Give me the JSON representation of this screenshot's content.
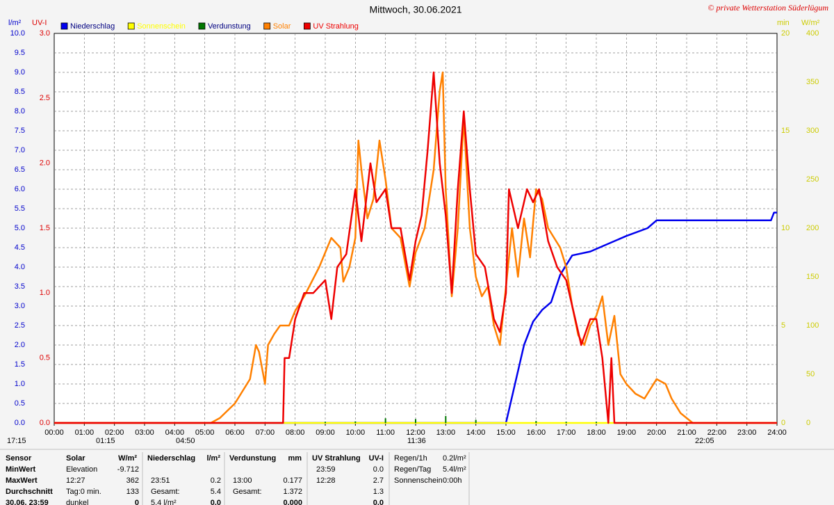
{
  "chart_data": {
    "type": "line",
    "title": "Mittwoch, 30.06.2021",
    "copyright": "© private Wetterstation Süderlügum",
    "axis_units": {
      "y": "l/m²",
      "y2": "UV-I",
      "y3": "min",
      "y4": "W/m²"
    },
    "xlim": [
      0,
      24
    ],
    "xticks": [
      {
        "value": 0,
        "label": "00:00"
      },
      {
        "value": 1,
        "label": "01:00"
      },
      {
        "value": 2,
        "label": "02:00"
      },
      {
        "value": 3,
        "label": "03:00"
      },
      {
        "value": 4,
        "label": "04:00"
      },
      {
        "value": 5,
        "label": "05:00"
      },
      {
        "value": 6,
        "label": "06:00"
      },
      {
        "value": 7,
        "label": "07:00"
      },
      {
        "value": 8,
        "label": "08:00"
      },
      {
        "value": 9,
        "label": "09:00"
      },
      {
        "value": 10,
        "label": "10:00"
      },
      {
        "value": 11,
        "label": "11:00"
      },
      {
        "value": 12,
        "label": "12:00"
      },
      {
        "value": 13,
        "label": "13:00"
      },
      {
        "value": 14,
        "label": "14:00"
      },
      {
        "value": 15,
        "label": "15:00"
      },
      {
        "value": 16,
        "label": "16:00"
      },
      {
        "value": 17,
        "label": "17:00"
      },
      {
        "value": 18,
        "label": "18:00"
      },
      {
        "value": 19,
        "label": "19:00"
      },
      {
        "value": 20,
        "label": "20:00"
      },
      {
        "value": 21,
        "label": "21:00"
      },
      {
        "value": 22,
        "label": "22:00"
      },
      {
        "value": 23,
        "label": "23:00"
      },
      {
        "value": 24,
        "label": "24:00"
      }
    ],
    "ylim": [
      0,
      10
    ],
    "yticks": [
      {
        "value": 0,
        "label": "0.0"
      },
      {
        "value": 0.5,
        "label": "0.5"
      },
      {
        "value": 1,
        "label": "1.0"
      },
      {
        "value": 1.5,
        "label": "1.5"
      },
      {
        "value": 2,
        "label": "2.0"
      },
      {
        "value": 2.5,
        "label": "2.5"
      },
      {
        "value": 3,
        "label": "3.0"
      },
      {
        "value": 3.5,
        "label": "3.5"
      },
      {
        "value": 4,
        "label": "4.0"
      },
      {
        "value": 4.5,
        "label": "4.5"
      },
      {
        "value": 5,
        "label": "5.0"
      },
      {
        "value": 5.5,
        "label": "5.5"
      },
      {
        "value": 6,
        "label": "6.0"
      },
      {
        "value": 6.5,
        "label": "6.5"
      },
      {
        "value": 7,
        "label": "7.0"
      },
      {
        "value": 7.5,
        "label": "7.5"
      },
      {
        "value": 8,
        "label": "8.0"
      },
      {
        "value": 8.5,
        "label": "8.5"
      },
      {
        "value": 9,
        "label": "9.0"
      },
      {
        "value": 9.5,
        "label": "9.5"
      },
      {
        "value": 10,
        "label": "10.0"
      }
    ],
    "y2lim": [
      0,
      3
    ],
    "y2ticks": [
      {
        "value": 0,
        "label": "0.0"
      },
      {
        "value": 0.5,
        "label": "0.5"
      },
      {
        "value": 1,
        "label": "1.0"
      },
      {
        "value": 1.5,
        "label": "1.5"
      },
      {
        "value": 2,
        "label": "2.0"
      },
      {
        "value": 2.5,
        "label": "2.5"
      },
      {
        "value": 3,
        "label": "3.0"
      }
    ],
    "y3lim": [
      0,
      20
    ],
    "y3ticks": [
      0,
      5,
      10,
      15,
      20
    ],
    "y4lim": [
      0,
      400
    ],
    "y4ticks": [
      0,
      50,
      100,
      150,
      200,
      250,
      300,
      350,
      400
    ],
    "grid": true,
    "axis_colors": {
      "y": "#0000cc",
      "y2": "#dd0000",
      "y3": "#cccc00",
      "y4": "#cccc00"
    },
    "series": [
      {
        "name": "Niederschlag",
        "color": "#0000ee",
        "axis": "y",
        "style": "line",
        "x": [
          0,
          15,
          15.3,
          15.6,
          15.9,
          16.2,
          16.5,
          16.8,
          17.2,
          17.8,
          18.4,
          19,
          19.7,
          20,
          23.8,
          23.9,
          24
        ],
        "values": [
          0,
          0,
          1.0,
          2.0,
          2.6,
          2.9,
          3.1,
          3.8,
          4.3,
          4.4,
          4.6,
          4.8,
          5.0,
          5.2,
          5.2,
          5.4,
          5.4
        ]
      },
      {
        "name": "Sonnenschein",
        "color": "#ffff00",
        "axis": "y3",
        "style": "line",
        "x": [
          0,
          24
        ],
        "values": [
          0,
          0
        ]
      },
      {
        "name": "Verdunstung",
        "color": "#007700",
        "axis": "y",
        "style": "spikes",
        "x": [
          9,
          10,
          11,
          12,
          13,
          14,
          16,
          17,
          18,
          19
        ],
        "values": [
          0.03,
          0.04,
          0.12,
          0.1,
          0.177,
          0.08,
          0.05,
          0.03,
          0.03,
          0.02
        ]
      },
      {
        "name": "Solar",
        "color": "#ff8000",
        "axis": "y4",
        "style": "line",
        "x": [
          0,
          5.2,
          5.5,
          6,
          6.5,
          6.7,
          6.8,
          7,
          7.1,
          7.3,
          7.5,
          7.8,
          8,
          8.3,
          8.8,
          9.2,
          9.5,
          9.6,
          9.8,
          10,
          10.1,
          10.2,
          10.4,
          10.6,
          10.8,
          11,
          11.2,
          11.5,
          11.8,
          12,
          12.3,
          12.6,
          12.8,
          12.9,
          13,
          13.2,
          13.4,
          13.6,
          13.8,
          14,
          14.2,
          14.4,
          14.6,
          14.8,
          15,
          15.2,
          15.4,
          15.6,
          15.8,
          16,
          16.2,
          16.4,
          16.6,
          16.8,
          17,
          17.2,
          17.4,
          17.6,
          17.8,
          18,
          18.2,
          18.4,
          18.6,
          18.8,
          19,
          19.3,
          19.6,
          19.8,
          20,
          20.3,
          20.5,
          20.8,
          21.2,
          24
        ],
        "values": [
          0,
          0,
          5,
          20,
          45,
          80,
          73,
          40,
          80,
          91,
          100,
          100,
          115,
          130,
          160,
          190,
          180,
          145,
          160,
          190,
          290,
          260,
          210,
          230,
          290,
          250,
          200,
          190,
          140,
          175,
          200,
          260,
          341,
          360,
          240,
          130,
          200,
          313,
          200,
          150,
          130,
          140,
          100,
          80,
          140,
          200,
          150,
          210,
          170,
          240,
          230,
          200,
          190,
          180,
          160,
          120,
          90,
          80,
          100,
          110,
          130,
          80,
          110,
          50,
          40,
          30,
          25,
          35,
          45,
          40,
          25,
          10,
          0,
          0
        ]
      },
      {
        "name": "UV Strahlung",
        "color": "#ee0000",
        "axis": "y2",
        "style": "line",
        "x": [
          0,
          7.6,
          7.65,
          7.8,
          8,
          8.3,
          8.6,
          9,
          9.2,
          9.4,
          9.7,
          10,
          10.2,
          10.5,
          10.7,
          11,
          11.2,
          11.5,
          11.8,
          12,
          12.2,
          12.4,
          12.6,
          12.8,
          13,
          13.2,
          13.4,
          13.6,
          13.8,
          14,
          14.3,
          14.6,
          14.8,
          15,
          15.1,
          15.4,
          15.7,
          15.9,
          16.1,
          16.4,
          16.7,
          17,
          17.3,
          17.5,
          17.8,
          18,
          18.2,
          18.4,
          18.5,
          18.6,
          24
        ],
        "values": [
          0,
          0,
          0.5,
          0.5,
          0.8,
          1.0,
          1.0,
          1.1,
          0.8,
          1.2,
          1.3,
          1.8,
          1.4,
          2.0,
          1.7,
          1.8,
          1.5,
          1.5,
          1.1,
          1.4,
          1.6,
          2.1,
          2.7,
          2.0,
          1.6,
          1.0,
          1.8,
          2.4,
          1.8,
          1.3,
          1.2,
          0.8,
          0.7,
          1.0,
          1.8,
          1.5,
          1.8,
          1.7,
          1.8,
          1.4,
          1.2,
          1.1,
          0.8,
          0.6,
          0.8,
          0.8,
          0.5,
          0,
          0.5,
          0,
          0
        ]
      }
    ],
    "legend_order": [
      0,
      1,
      2,
      3,
      4
    ],
    "time_markers": [
      "17:15",
      "01:15",
      "04:50",
      "11:36",
      "22:05"
    ]
  },
  "stats": {
    "row_labels": [
      "Sensor",
      "MinWert",
      "MaxWert",
      "Durchschnitt",
      "30.06. 23:59"
    ],
    "blocks": [
      {
        "title": "Solar",
        "unit": "W/m²",
        "rows": [
          [
            "Elevation",
            "-9.712"
          ],
          [
            "12:27",
            "362"
          ],
          [
            "Tag:0 min.",
            "133"
          ],
          [
            "dunkel",
            "0"
          ]
        ]
      },
      {
        "title": "Niederschlag",
        "unit": "l/m²",
        "rows": [
          [
            null,
            null
          ],
          [
            "23:51",
            "0.2"
          ],
          [
            "Gesamt:",
            "5.4"
          ],
          [
            "5.4 l/m²",
            "0.0"
          ]
        ]
      },
      {
        "title": "Verdunstung",
        "unit": "mm",
        "rows": [
          [
            null,
            null
          ],
          [
            "13:00",
            "0.177"
          ],
          [
            "Gesamt:",
            "1.372"
          ],
          [
            null,
            "0.000"
          ]
        ]
      },
      {
        "title": "UV Strahlung",
        "unit": "UV-I",
        "rows": [
          [
            "23:59",
            "0.0"
          ],
          [
            "12:28",
            "2.7"
          ],
          [
            null,
            "1.3"
          ],
          [
            null,
            "0.0"
          ]
        ]
      }
    ],
    "summary": [
      [
        "Regen/1h",
        "0.2l/m²"
      ],
      [
        "Regen/Tag",
        "5.4l/m²"
      ],
      [
        "Sonnenschein",
        "0:00h"
      ]
    ]
  }
}
